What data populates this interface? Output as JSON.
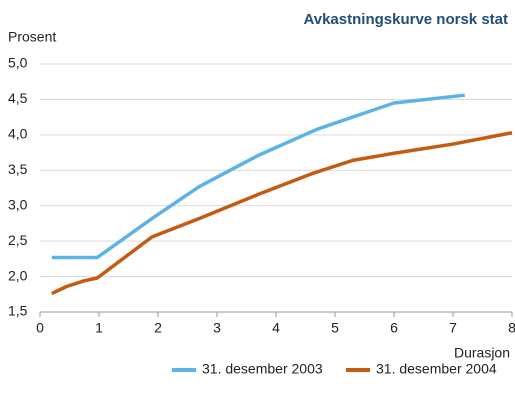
{
  "chart_data": {
    "type": "line",
    "title": "Avkastningskurve norsk stat",
    "ylabel": "Prosent",
    "xlabel": "Durasjon",
    "xlim": [
      0,
      8
    ],
    "xticks": [
      0,
      1,
      2,
      3,
      4,
      5,
      6,
      7,
      8
    ],
    "ylim": [
      1.5,
      5.0
    ],
    "yticks": [
      {
        "value": 1.5,
        "label": "1,5"
      },
      {
        "value": 2,
        "label": "2,0"
      },
      {
        "value": 2.5,
        "label": "2,5"
      },
      {
        "value": 3,
        "label": "3,0"
      },
      {
        "value": 3.5,
        "label": "3,5"
      },
      {
        "value": 4,
        "label": "4,0"
      },
      {
        "value": 4.5,
        "label": "4,5"
      },
      {
        "value": 5,
        "label": "5,0"
      }
    ],
    "grid": true,
    "legend": "bottom-right",
    "series": [
      {
        "name": "31. desember 2003",
        "color": "#5bb4e5",
        "x": [
          0.2,
          0.97,
          1.9,
          2.7,
          3.7,
          4.7,
          6.0,
          7.2
        ],
        "values": [
          2.27,
          2.27,
          2.82,
          3.27,
          3.71,
          4.08,
          4.45,
          4.56
        ]
      },
      {
        "name": "31. desember 2004",
        "color": "#c55a11",
        "x": [
          0.2,
          0.45,
          0.75,
          0.97,
          1.9,
          2.7,
          3.7,
          4.6,
          5.3,
          6.0,
          7.0,
          8.0
        ],
        "values": [
          1.76,
          1.86,
          1.94,
          1.98,
          2.56,
          2.82,
          3.16,
          3.45,
          3.64,
          3.74,
          3.87,
          4.03
        ]
      }
    ]
  }
}
